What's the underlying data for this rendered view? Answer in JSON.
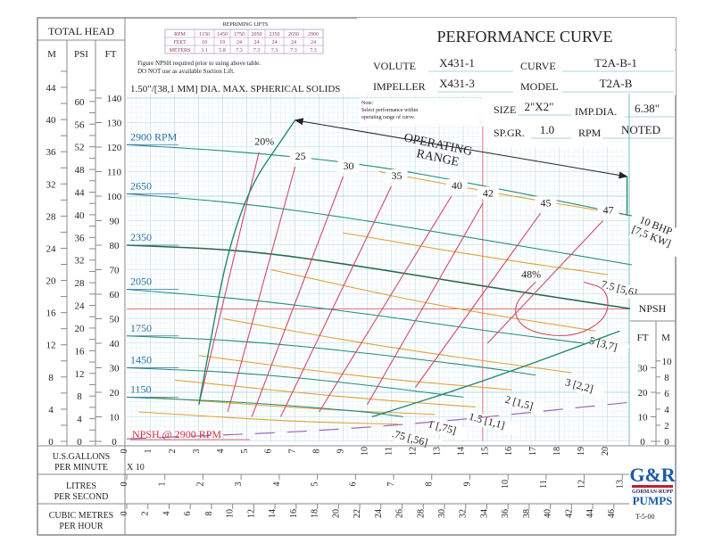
{
  "chart_data": {
    "type": "line",
    "title": "PERFORMANCE CURVE",
    "header": {
      "volute_label": "VOLUTE",
      "volute": "X431-1",
      "curve_label": "CURVE",
      "curve": "T2A-B-1",
      "impeller_label": "IMPELLER",
      "impeller": "X431-3",
      "model_label": "MODEL",
      "model": "T2A-B",
      "size_label": "SIZE",
      "size": "2\"X2\"",
      "impdia_label": "IMP.DIA.",
      "impdia": "6.38\"",
      "spgr_label": "SP.GR.",
      "spgr": "1.0",
      "rpm_label": "RPM",
      "rpm": "NOTED",
      "note_lines": [
        "Note:",
        "Select performance within",
        "operating range of curve."
      ]
    },
    "repriming": {
      "title": "REPRIMING LIFTS",
      "rows": [
        [
          "RPM",
          "1150",
          "1450",
          "1750",
          "2050",
          "2350",
          "2650",
          "2900"
        ],
        [
          "FEET",
          "10",
          "19",
          "24",
          "24",
          "24",
          "24",
          "24"
        ],
        [
          "METERS",
          "3.1",
          "5.8",
          "7.3",
          "7.3",
          "7.3",
          "7.3",
          "7.3"
        ]
      ],
      "notes": [
        "Figure NPSH required prior to using above table.",
        "DO NOT use as available Suction Lift."
      ]
    },
    "solids": "1.50\"/[38,1 MM] DIA. MAX. SPHERICAL SOLIDS",
    "ylabel": "TOTAL HEAD",
    "y_units": [
      "M",
      "PSI",
      "FT"
    ],
    "ylim_ft": [
      0,
      145
    ],
    "ticks_ft": [
      0,
      10,
      20,
      30,
      40,
      50,
      60,
      70,
      80,
      90,
      100,
      110,
      120,
      130,
      140
    ],
    "ticks_m": [
      0,
      4,
      8,
      12,
      16,
      20,
      24,
      28,
      32,
      36,
      40,
      44
    ],
    "ticks_psi": [
      0,
      4,
      8,
      12,
      16,
      20,
      24,
      28,
      32,
      36,
      40,
      44,
      48,
      52,
      56,
      60
    ],
    "xlim_gpm": [
      0,
      210
    ],
    "x_axes": [
      {
        "label": [
          "U.S.GALLONS",
          "PER MINUTE"
        ],
        "multiplier": "X 10",
        "ticks": [
          "0",
          "1",
          "2",
          "3",
          "4",
          "5",
          "6",
          "7",
          "8",
          "9",
          "10",
          "11",
          "12",
          "13",
          "14",
          "15",
          "16",
          "17",
          "18",
          "19",
          "20"
        ],
        "gpm_per_unit": 10
      },
      {
        "label": [
          "LITRES",
          "PER SECOND"
        ],
        "ticks": [
          "0",
          "1",
          "2",
          "3",
          "4",
          "5",
          "6",
          "7",
          "8",
          "9",
          "10",
          "11",
          "12",
          "13"
        ],
        "gpm_per_unit": 15.85
      },
      {
        "label": [
          "CUBIC METRES",
          "PER HOUR"
        ],
        "ticks": [
          "0",
          "2",
          "4",
          "6",
          "8",
          "10",
          "12",
          "14",
          "16",
          "18",
          "20",
          "22",
          "24",
          "26",
          "28",
          "30",
          "32",
          "34",
          "36",
          "38",
          "40",
          "42",
          "44",
          "46"
        ],
        "gpm_per_unit": 4.403
      }
    ],
    "head_curves": [
      {
        "name": "2900 RPM",
        "points": [
          [
            0,
            121
          ],
          [
            50,
            118
          ],
          [
            100,
            113
          ],
          [
            150,
            104
          ],
          [
            210,
            92
          ]
        ]
      },
      {
        "name": "2650",
        "points": [
          [
            0,
            101
          ],
          [
            50,
            97
          ],
          [
            100,
            90
          ],
          [
            150,
            82
          ],
          [
            210,
            72
          ]
        ]
      },
      {
        "name": "2350",
        "points": [
          [
            0,
            80
          ],
          [
            50,
            78
          ],
          [
            100,
            71
          ],
          [
            150,
            63
          ],
          [
            210,
            54
          ]
        ]
      },
      {
        "name": "2050",
        "points": [
          [
            0,
            62
          ],
          [
            50,
            58
          ],
          [
            100,
            52
          ],
          [
            150,
            45
          ],
          [
            190,
            40
          ]
        ]
      },
      {
        "name": "1750",
        "points": [
          [
            0,
            43
          ],
          [
            50,
            41
          ],
          [
            100,
            36
          ],
          [
            150,
            30
          ],
          [
            170,
            27
          ]
        ]
      },
      {
        "name": "1450",
        "points": [
          [
            0,
            30
          ],
          [
            50,
            28
          ],
          [
            100,
            23
          ],
          [
            140,
            18
          ]
        ]
      },
      {
        "name": "1150",
        "points": [
          [
            0,
            18
          ],
          [
            50,
            16
          ],
          [
            100,
            12
          ],
          [
            115,
            10
          ]
        ]
      }
    ],
    "efficiency_curves": [
      {
        "name": "20%",
        "points": [
          [
            30,
            15
          ],
          [
            55,
            118
          ]
        ]
      },
      {
        "name": "25",
        "points": [
          [
            42,
            12
          ],
          [
            70,
            112
          ]
        ]
      },
      {
        "name": "30",
        "points": [
          [
            52,
            10
          ],
          [
            90,
            108
          ]
        ]
      },
      {
        "name": "35",
        "points": [
          [
            64,
            10
          ],
          [
            110,
            104
          ]
        ]
      },
      {
        "name": "40",
        "points": [
          [
            80,
            12
          ],
          [
            135,
            100
          ]
        ]
      },
      {
        "name": "42",
        "points": [
          [
            100,
            15
          ],
          [
            148,
            97
          ]
        ]
      },
      {
        "name": "45",
        "points": [
          [
            120,
            22
          ],
          [
            172,
            93
          ]
        ]
      },
      {
        "name": "47",
        "points": [
          [
            150,
            40
          ],
          [
            198,
            90
          ]
        ]
      },
      {
        "name": "48%",
        "points": [
          [
            170,
            65
          ],
          [
            160,
            55
          ],
          [
            165,
            45
          ],
          [
            185,
            42
          ],
          [
            200,
            50
          ],
          [
            200,
            62
          ],
          [
            190,
            65
          ]
        ]
      }
    ],
    "bhp_curves": [
      {
        "name": "10 BHP [7,5 KW]",
        "points": [
          [
            105,
            110
          ],
          [
            160,
            100
          ],
          [
            210,
            92
          ]
        ]
      },
      {
        "name": "7.5 [5,6]",
        "points": [
          [
            90,
            85
          ],
          [
            150,
            75
          ],
          [
            200,
            68
          ]
        ]
      },
      {
        "name": "5 [3,7]",
        "points": [
          [
            60,
            70
          ],
          [
            130,
            55
          ],
          [
            195,
            45
          ]
        ]
      },
      {
        "name": "3 [2,2]",
        "points": [
          [
            40,
            50
          ],
          [
            110,
            38
          ],
          [
            185,
            28
          ]
        ]
      },
      {
        "name": "2 [1,5]",
        "points": [
          [
            30,
            35
          ],
          [
            100,
            26
          ],
          [
            160,
            21
          ]
        ]
      },
      {
        "name": "1.5 [1,1]",
        "points": [
          [
            20,
            25
          ],
          [
            90,
            18
          ],
          [
            145,
            14
          ]
        ]
      },
      {
        "name": "1 [,75]",
        "points": [
          [
            10,
            18
          ],
          [
            80,
            13
          ],
          [
            128,
            11
          ]
        ]
      },
      {
        "name": ".75 [,56]",
        "points": [
          [
            5,
            12
          ],
          [
            70,
            8
          ],
          [
            113,
            7
          ]
        ]
      }
    ],
    "npsh_curve": {
      "name": "NPSH @ 2900 RPM",
      "points": [
        [
          0,
          1
        ],
        [
          100,
          5
        ],
        [
          210,
          16
        ]
      ]
    },
    "npsh_axis": {
      "title": "NPSH",
      "units": [
        "FT",
        "M"
      ],
      "ticks_ft": [
        0,
        10,
        20,
        30
      ],
      "ticks_m": [
        0,
        2,
        4,
        6,
        8,
        10
      ]
    },
    "operating_range": {
      "label": [
        "OPERATING",
        "RANGE"
      ],
      "left_boundary": [
        [
          30,
          15
        ],
        [
          45,
          95
        ],
        [
          70,
          131
        ]
      ],
      "top": [
        [
          70,
          131
        ],
        [
          208,
          108
        ]
      ],
      "right": [
        [
          208,
          108
        ],
        [
          208,
          92
        ]
      ],
      "bottom": [
        [
          102,
          10
        ],
        [
          150,
          25
        ],
        [
          205,
          45
        ]
      ]
    },
    "brand": {
      "line1": "G&R",
      "line2": "GORMAN-RUPP",
      "line3": "PUMPS"
    },
    "doc_code": "T-5-00",
    "colors": {
      "head": "#1f8a7a",
      "eff": "#d04a6a",
      "bhp": "#e0a030",
      "npsh": "#9a6ab8",
      "grid": "#bfe0ec",
      "label_blue": "#2a6fa8"
    }
  }
}
